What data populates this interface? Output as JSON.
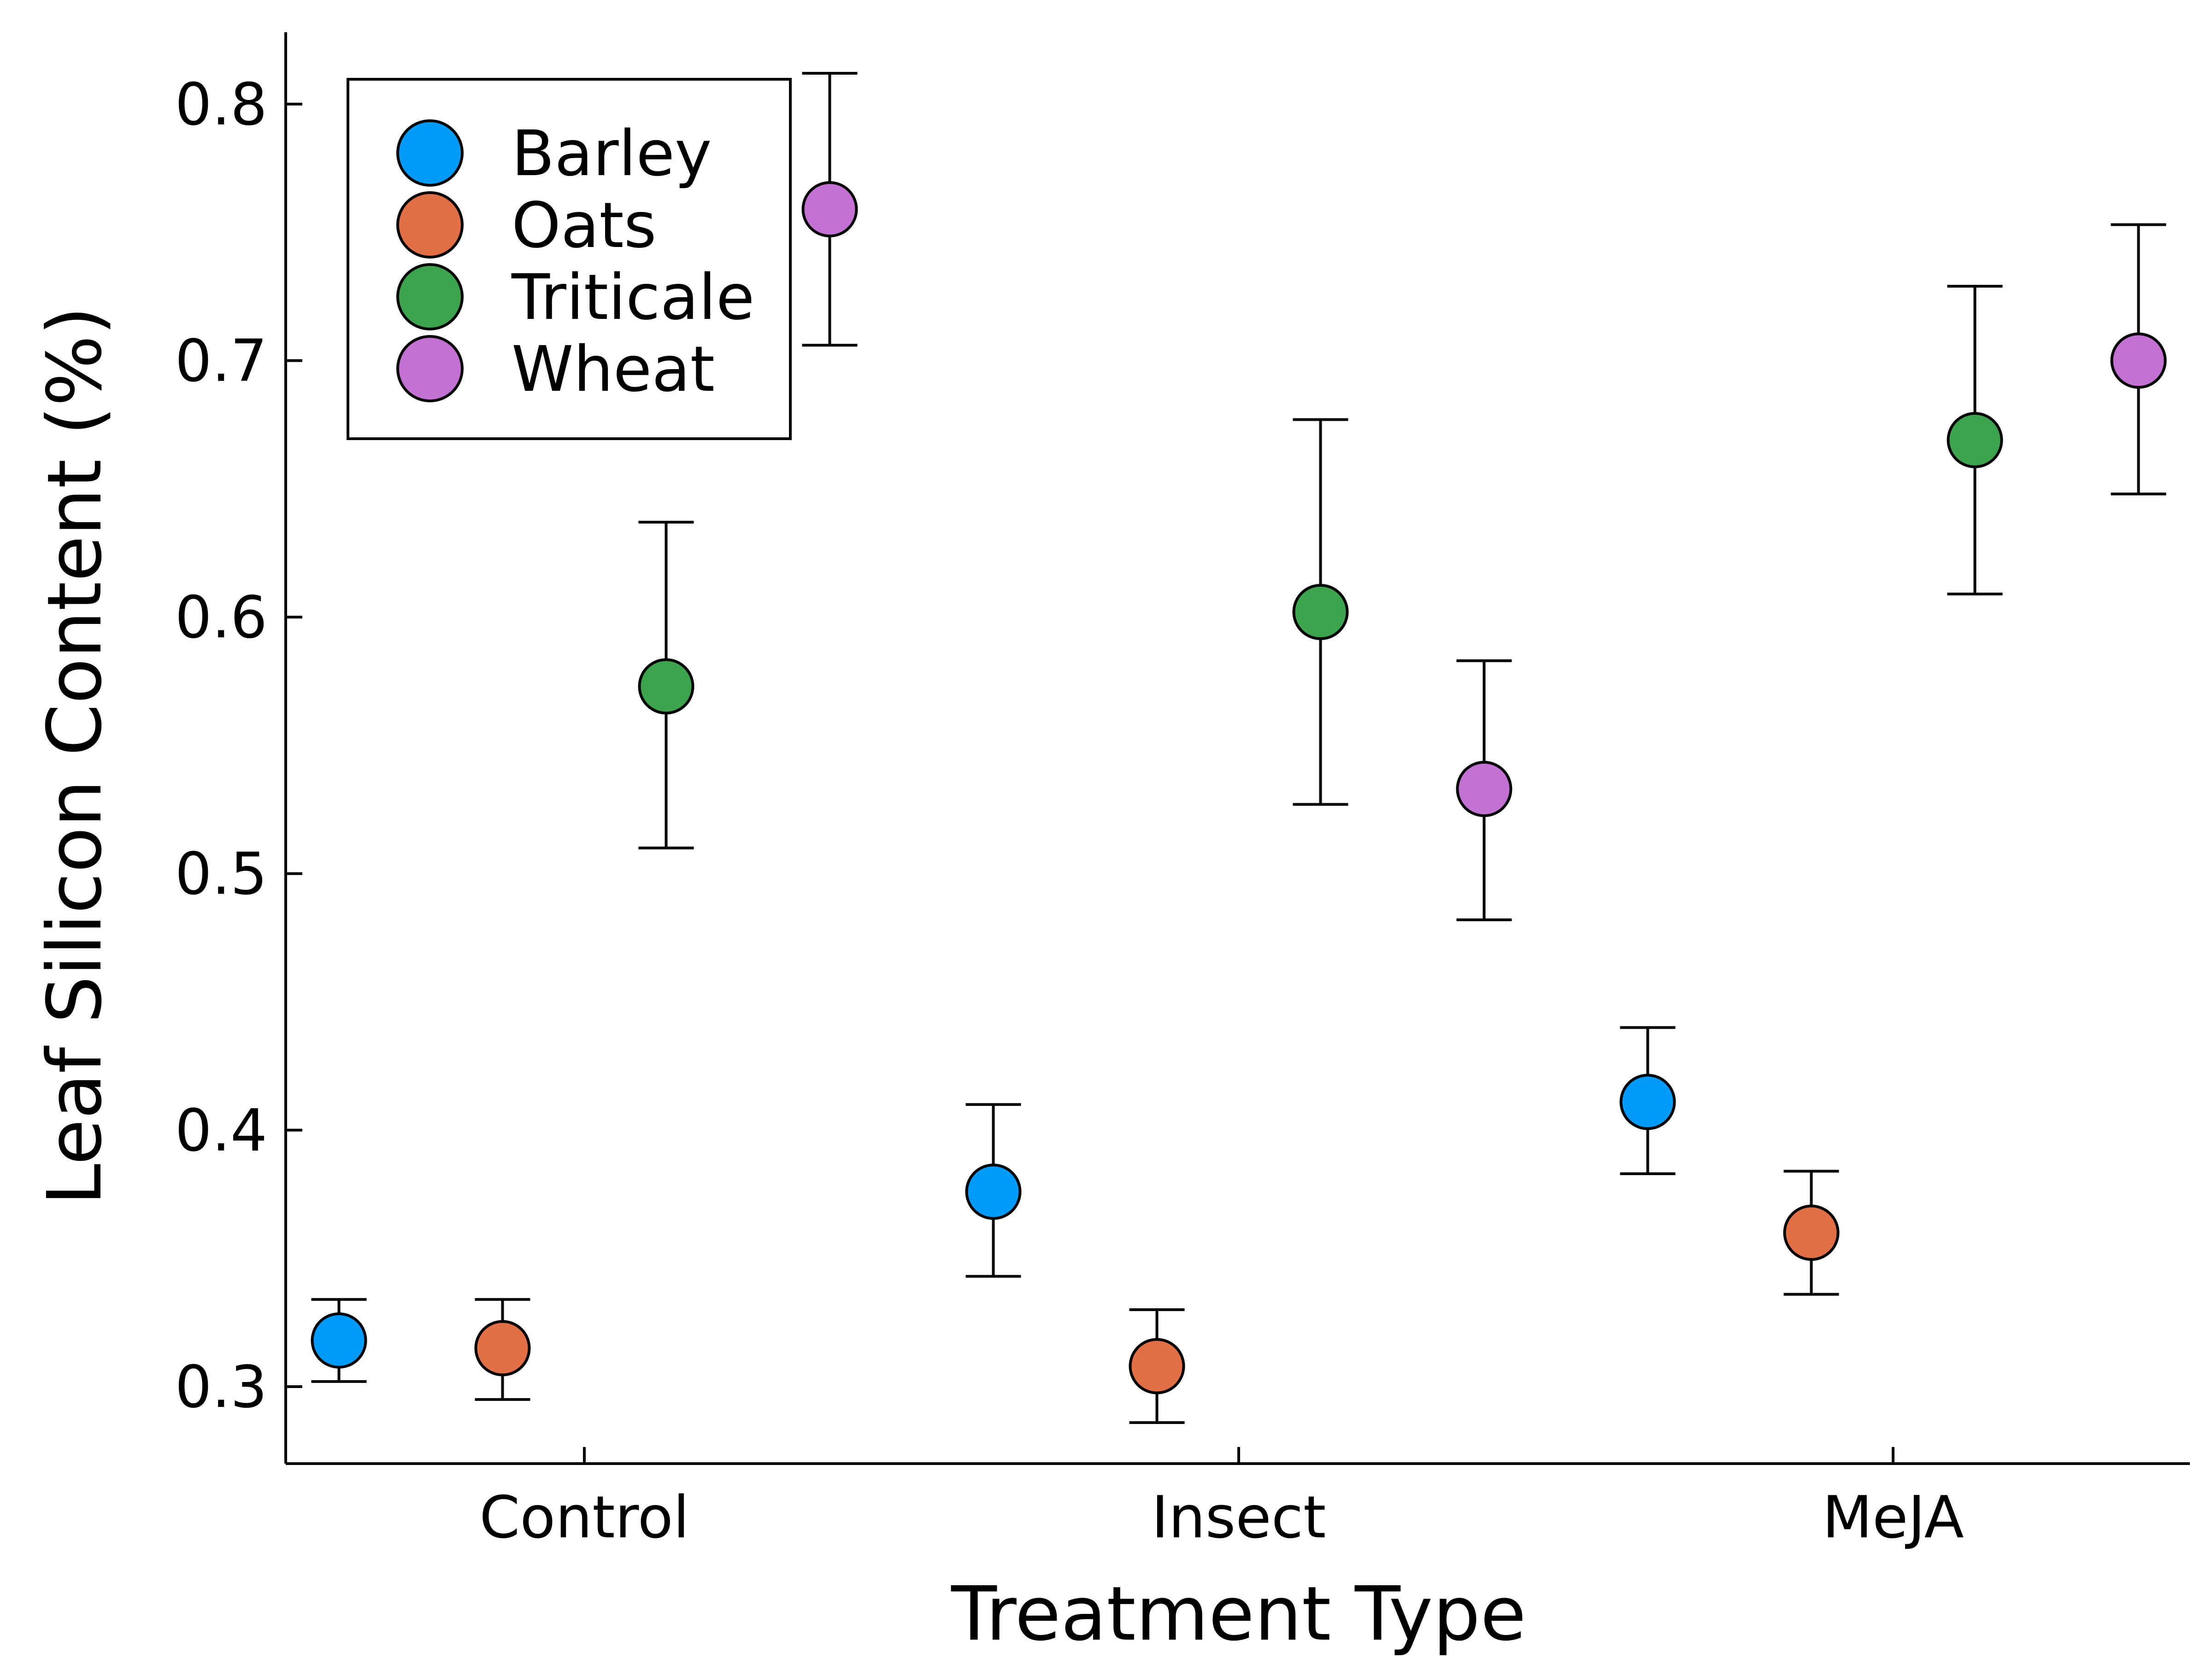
{
  "chart_data": {
    "type": "scatter",
    "xlabel": "Treatment Type",
    "ylabel": "Leaf Silicon Content (%)",
    "categories": [
      "Control",
      "Insect",
      "MeJA"
    ],
    "yticks": [
      0.3,
      0.4,
      0.5,
      0.6,
      0.7,
      0.8
    ],
    "yticklabels": [
      "0.3",
      "0.4",
      "0.5",
      "0.6",
      "0.7",
      "0.8"
    ],
    "ylim": [
      0.27,
      0.828
    ],
    "grid": false,
    "legend_position": "top-left",
    "series": [
      {
        "name": "Barley",
        "color": "#009af9",
        "values": [
          0.318,
          0.376,
          0.411
        ],
        "lower": [
          0.302,
          0.343,
          0.383
        ],
        "upper": [
          0.334,
          0.41,
          0.44
        ]
      },
      {
        "name": "Oats",
        "color": "#e26f46",
        "values": [
          0.315,
          0.308,
          0.36
        ],
        "lower": [
          0.295,
          0.286,
          0.336
        ],
        "upper": [
          0.334,
          0.33,
          0.384
        ]
      },
      {
        "name": "Triticale",
        "color": "#3da44d",
        "values": [
          0.573,
          0.602,
          0.669
        ],
        "lower": [
          0.51,
          0.527,
          0.609
        ],
        "upper": [
          0.637,
          0.677,
          0.729
        ]
      },
      {
        "name": "Wheat",
        "color": "#c371d2",
        "values": [
          0.759,
          0.533,
          0.7
        ],
        "lower": [
          0.706,
          0.482,
          0.648
        ],
        "upper": [
          0.812,
          0.583,
          0.753
        ]
      }
    ]
  }
}
